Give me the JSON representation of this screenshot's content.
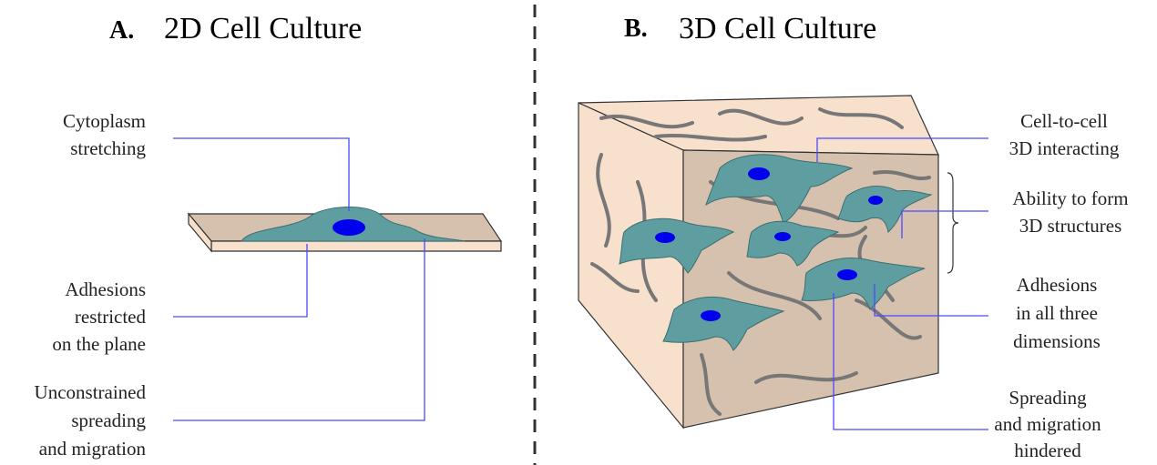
{
  "panels": [
    {
      "letter": "A.",
      "title": "2D Cell Culture",
      "labels": [
        [
          "Cytoplasm",
          "stretching"
        ],
        [
          "Adhesions",
          "restricted",
          "on the plane"
        ],
        [
          "Unconstrained",
          "spreading",
          "and migration"
        ]
      ]
    },
    {
      "letter": "B.",
      "title": "3D Cell Culture",
      "labels": [
        [
          "Cell-to-cell",
          "3D interacting"
        ],
        [
          "Ability to form",
          "3D structures"
        ],
        [
          "Adhesions",
          "in all three",
          "dimensions"
        ],
        [
          "Spreading",
          "and migration",
          "hindered"
        ]
      ]
    }
  ]
}
